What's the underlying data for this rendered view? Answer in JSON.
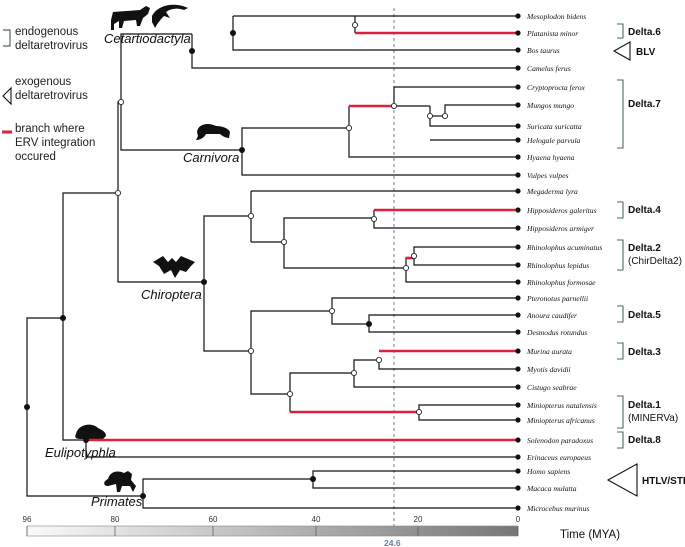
{
  "legend": {
    "endogenous": "endogenous deltaretrovirus",
    "exogenous": "exogenous deltaretrovirus",
    "integration": "branch where ERV integration occured"
  },
  "orders": {
    "cetartiodactyla": "Cetartiodactyla",
    "carnivora": "Carnivora",
    "chiroptera": "Chiroptera",
    "eulipotyphla": "Eulipotyphla",
    "primates": "Primates"
  },
  "species": [
    "Mesoplodon bidens",
    "Platanista minor",
    "Bos taurus",
    "Camelus ferus",
    "Cryptoprocta ferox",
    "Mungos mungo",
    "Suricata suricatta",
    "Helogale parvula",
    "Hyaena hyaena",
    "Vulpes vulpes",
    "Megaderma lyra",
    "Hipposideros galeritus",
    "Hipposideros armiger",
    "Rhinolophus acuminatus",
    "Rhinolophus lepidus",
    "Rhinolophus formosae",
    "Pteronotus parnellii",
    "Anoura caudifer",
    "Desmodus rotundus",
    "Murina aurata",
    "Myotis davidii",
    "Cistugo seabrae",
    "Miniopterus natalensis",
    "Miniopterus africanus",
    "Solenodon paradoxus",
    "Erinaceus europaeus",
    "Homo sapiens",
    "Macaca mulatta",
    "Microcebus murinus"
  ],
  "virus_labels": {
    "delta6": "Delta.6",
    "blv": "BLV",
    "delta7": "Delta.7",
    "delta4": "Delta.4",
    "delta2": "Delta.2",
    "delta2_sub": "(ChirDelta2)",
    "delta5": "Delta.5",
    "delta3": "Delta.3",
    "delta1": "Delta.1",
    "delta1_sub": "(MINERVa)",
    "delta8": "Delta.8",
    "htlv": "HTLV/STLV"
  },
  "axis": {
    "title": "Time (MYA)",
    "ticks": [
      "96",
      "80",
      "60",
      "40",
      "20",
      "0"
    ],
    "marker": "24.6"
  },
  "colors": {
    "branch": "#111111",
    "integration": "#e0203f",
    "bracket": "#4a6b5c",
    "marker": "#6b7f9a"
  }
}
